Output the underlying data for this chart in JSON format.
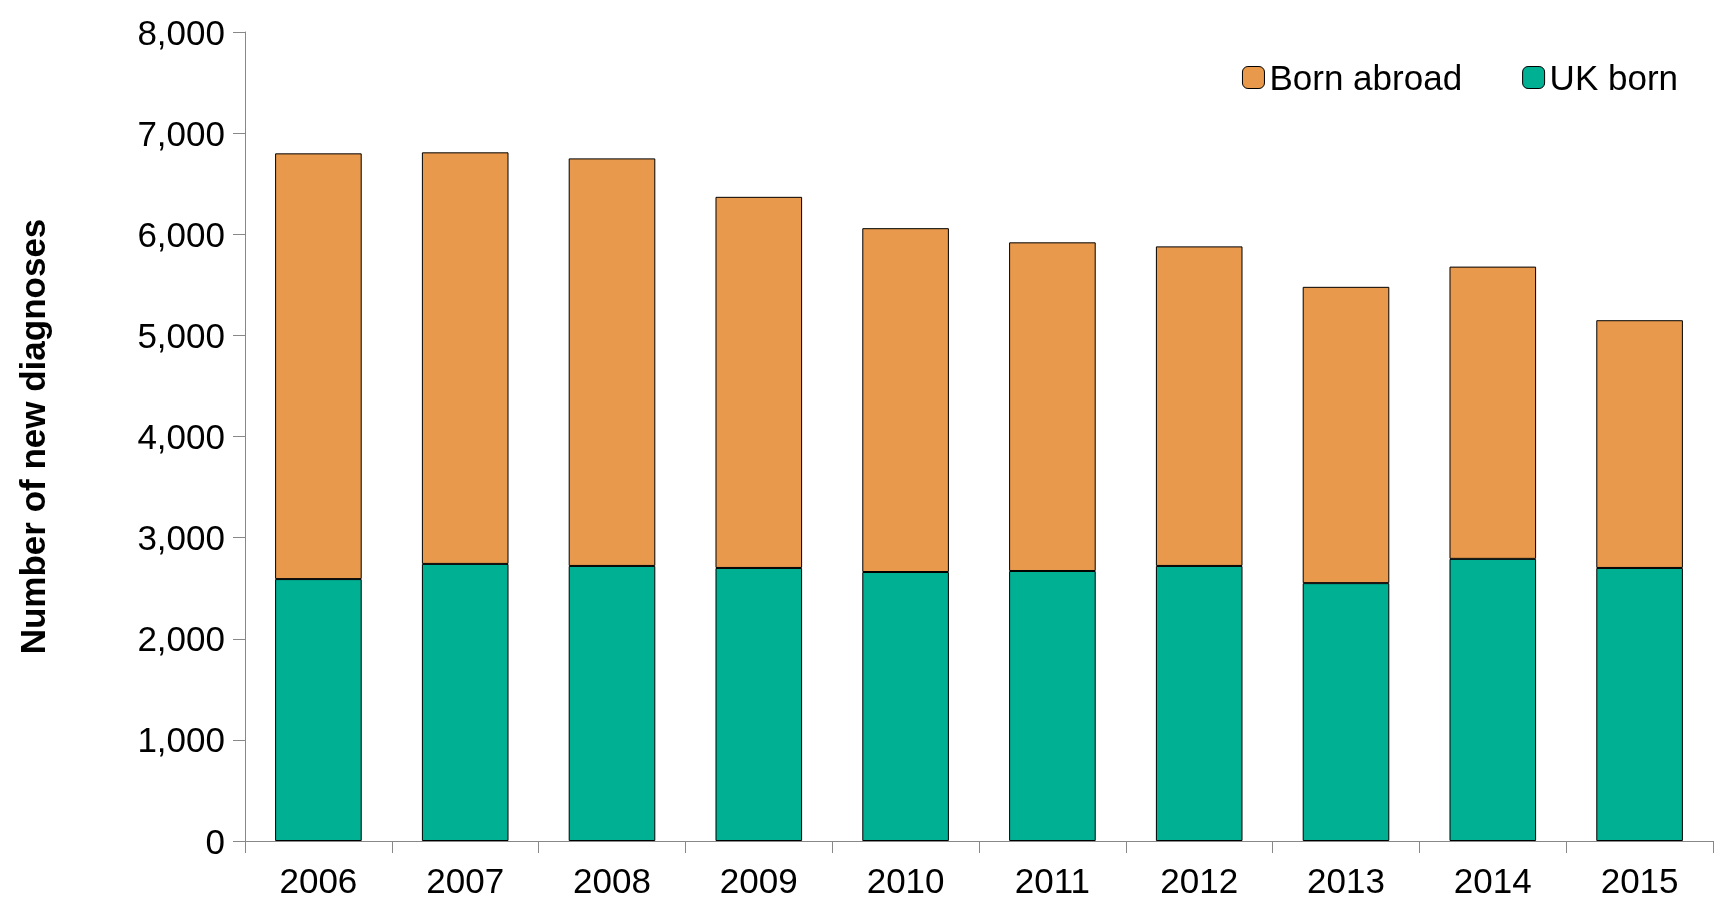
{
  "chart_data": {
    "type": "bar",
    "ylabel": "Number of new diagnoses",
    "categories": [
      "2006",
      "2007",
      "2008",
      "2009",
      "2010",
      "2011",
      "2012",
      "2013",
      "2014",
      "2015"
    ],
    "stacked": true,
    "series": [
      {
        "name": "UK born",
        "color": "#00b093",
        "values": [
          2590,
          2740,
          2720,
          2700,
          2660,
          2670,
          2720,
          2550,
          2790,
          2700
        ]
      },
      {
        "name": "Born abroad",
        "color": "#e8994c",
        "values": [
          4210,
          4070,
          4030,
          3670,
          3400,
          3250,
          3160,
          2930,
          2890,
          2450
        ]
      }
    ],
    "ylim": [
      0,
      8000
    ],
    "yticks": [
      0,
      {
        "value": 1000,
        "label": "1,000"
      },
      {
        "value": 2000,
        "label": "2,000"
      },
      {
        "value": 3000,
        "label": "3,000"
      },
      {
        "value": 4000,
        "label": "4,000"
      },
      {
        "value": 5000,
        "label": "5,000"
      },
      {
        "value": 6000,
        "label": "6,000"
      },
      {
        "value": 7000,
        "label": "7,000"
      },
      {
        "value": 8000,
        "label": "8,000"
      }
    ],
    "grid": false,
    "legend": "top right"
  }
}
